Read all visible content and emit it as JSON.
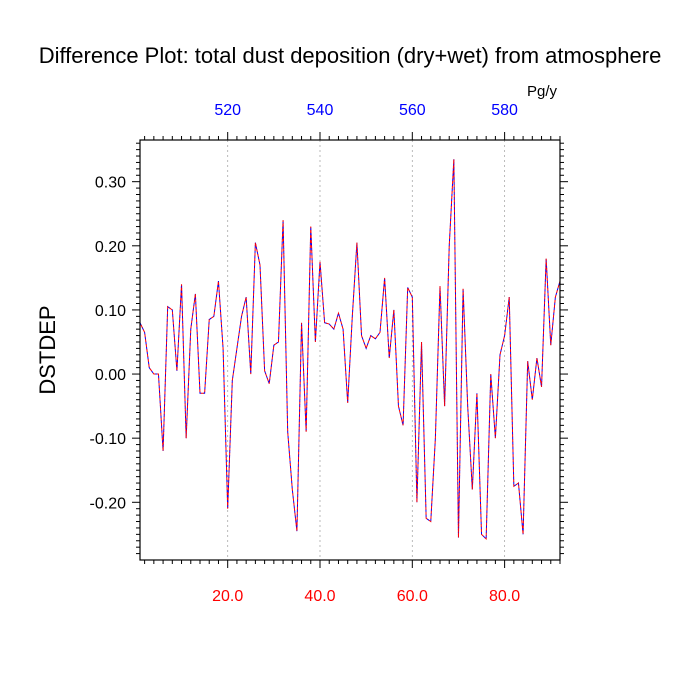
{
  "chart_data": {
    "type": "line",
    "title": "Difference Plot: total dust deposition (dry+wet) from atmosphere",
    "units": "Pg/y",
    "ylabel": "DSTDEP",
    "xlabel": "",
    "xlim": [
      1,
      92
    ],
    "ylim": [
      -0.29,
      0.365
    ],
    "grid": "vertical-dashed",
    "bottom_axis": {
      "ticks": [
        20,
        40,
        60,
        80
      ],
      "labels": [
        "20.0",
        "40.0",
        "60.0",
        "80.0"
      ],
      "color": "#ff0000"
    },
    "top_axis": {
      "ticks": [
        20,
        40,
        60,
        80
      ],
      "labels": [
        "520",
        "540",
        "560",
        "580"
      ],
      "color": "#0000ff"
    },
    "y_ticks": [
      -0.2,
      -0.1,
      0.0,
      0.1,
      0.2,
      0.3
    ],
    "y_tick_labels": [
      "-0.20",
      "-0.10",
      "0.00",
      "0.10",
      "0.20",
      "0.30"
    ],
    "series": [
      {
        "color_primary": "#0000ff",
        "color_secondary": "#ff0000",
        "x": [
          1,
          2,
          3,
          4,
          5,
          6,
          7,
          8,
          9,
          10,
          11,
          12,
          13,
          14,
          15,
          16,
          17,
          18,
          19,
          20,
          21,
          22,
          23,
          24,
          25,
          26,
          27,
          28,
          29,
          30,
          31,
          32,
          33,
          34,
          35,
          36,
          37,
          38,
          39,
          40,
          41,
          42,
          43,
          44,
          45,
          46,
          47,
          48,
          49,
          50,
          51,
          52,
          53,
          54,
          55,
          56,
          57,
          58,
          59,
          60,
          61,
          62,
          63,
          64,
          65,
          66,
          67,
          68,
          69,
          70,
          71,
          72,
          73,
          74,
          75,
          76,
          77,
          78,
          79,
          80,
          81,
          82,
          83,
          84,
          85,
          86,
          87,
          88,
          89,
          90,
          91,
          92
        ],
        "y": [
          0.08,
          0.065,
          0.01,
          0.0,
          0.0,
          -0.12,
          0.105,
          0.1,
          0.005,
          0.14,
          -0.1,
          0.07,
          0.125,
          -0.03,
          -0.03,
          0.085,
          0.09,
          0.145,
          0.04,
          -0.21,
          -0.01,
          0.04,
          0.09,
          0.12,
          0.0,
          0.205,
          0.17,
          0.005,
          -0.015,
          0.045,
          0.05,
          0.24,
          -0.09,
          -0.18,
          -0.245,
          0.08,
          -0.09,
          0.23,
          0.05,
          0.175,
          0.08,
          0.078,
          0.07,
          0.095,
          0.07,
          -0.045,
          0.09,
          0.205,
          0.06,
          0.04,
          0.06,
          0.055,
          0.065,
          0.15,
          0.025,
          0.1,
          -0.05,
          -0.08,
          0.135,
          0.12,
          -0.2,
          0.05,
          -0.225,
          -0.23,
          -0.1,
          0.137,
          -0.05,
          0.2,
          0.335,
          -0.255,
          0.133,
          -0.05,
          -0.18,
          -0.03,
          -0.25,
          -0.257,
          0.0,
          -0.1,
          0.03,
          0.06,
          0.12,
          -0.175,
          -0.17,
          -0.25,
          0.02,
          -0.04,
          0.025,
          -0.02,
          0.18,
          0.045,
          0.12,
          0.145
        ]
      }
    ]
  }
}
